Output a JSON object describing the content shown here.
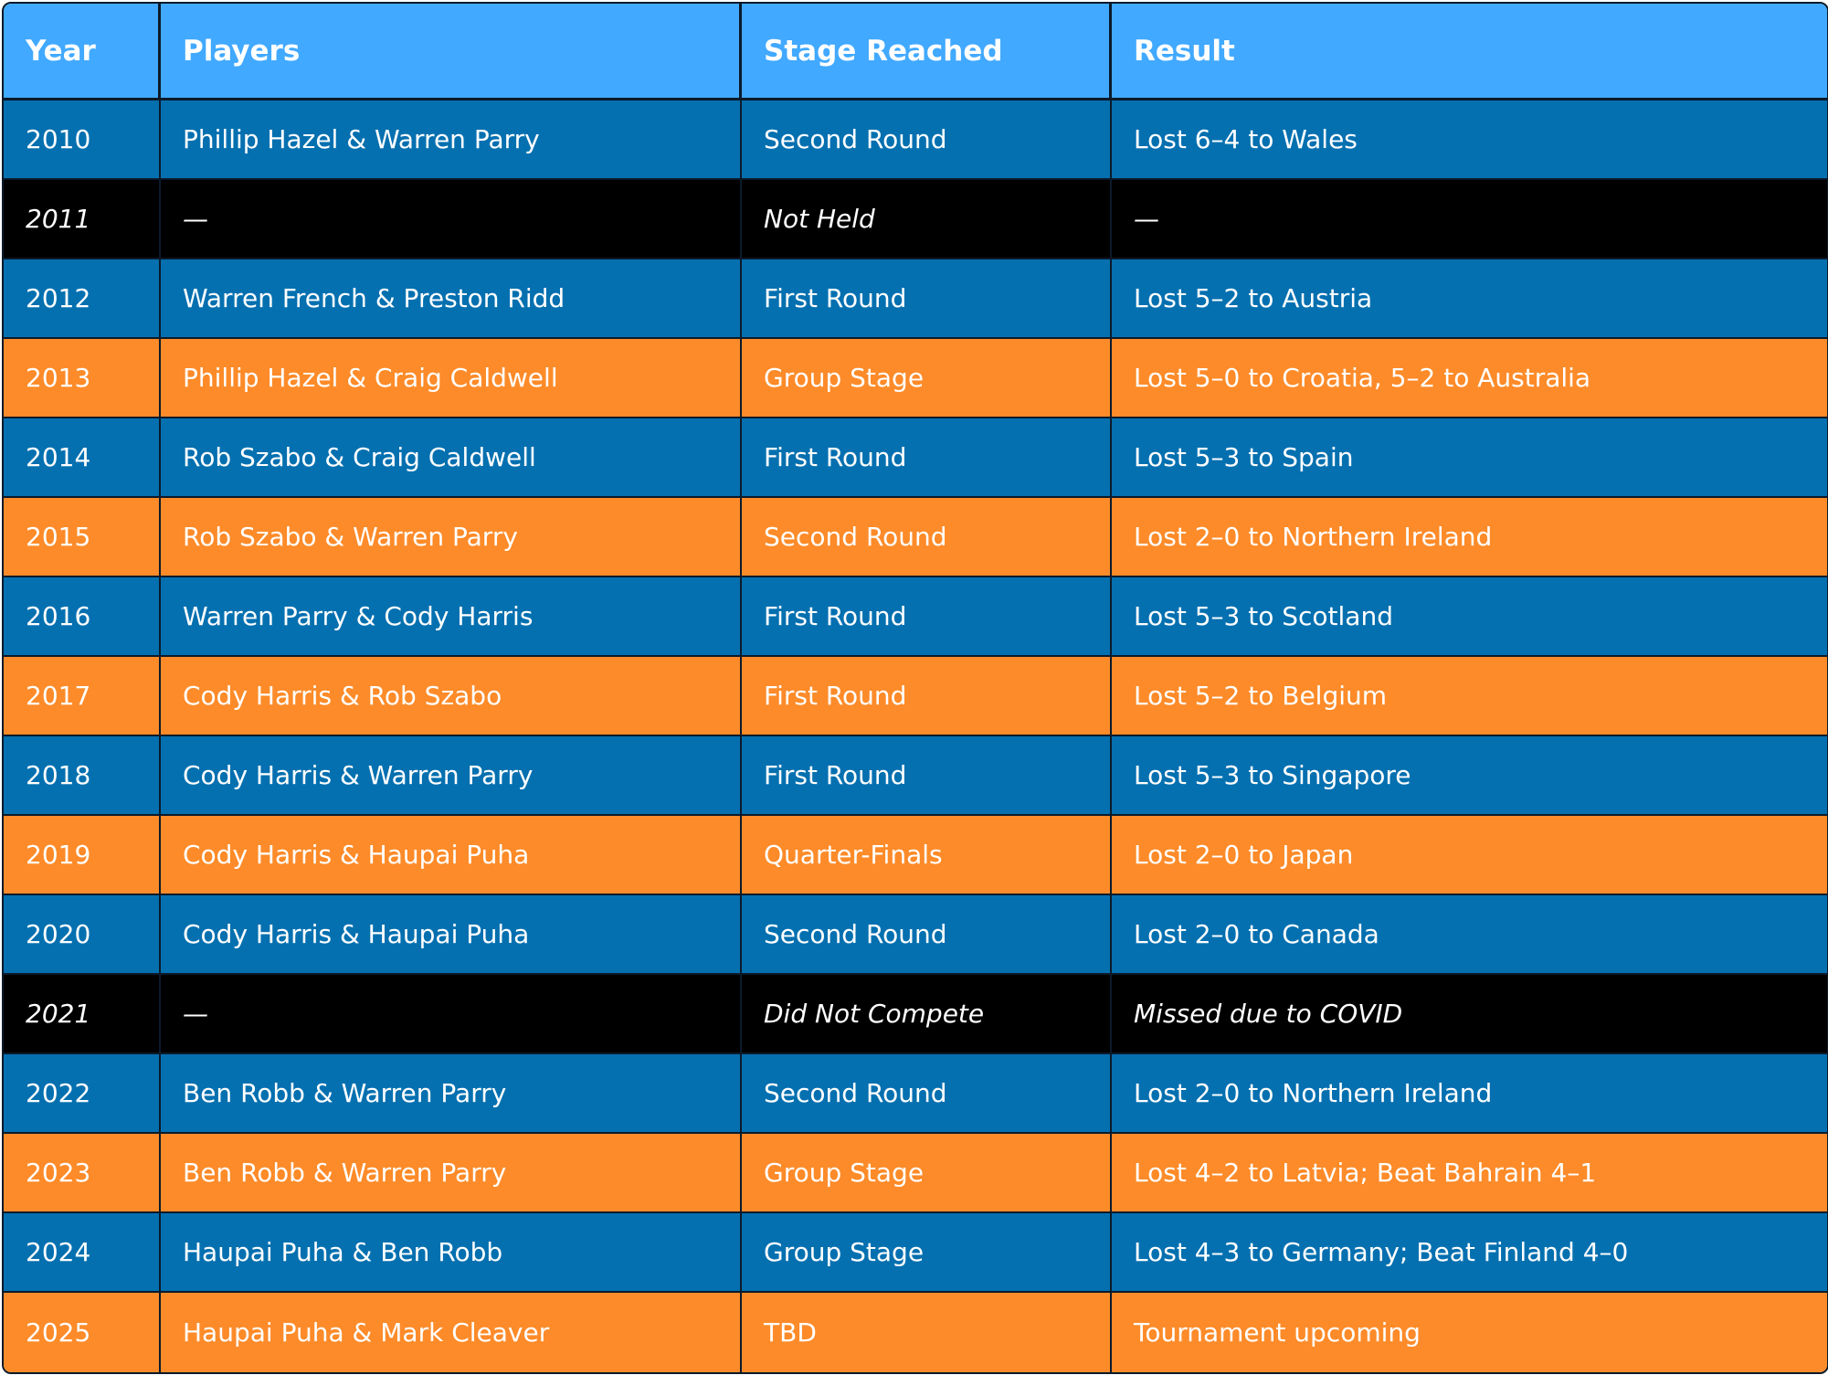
{
  "table": {
    "headers": [
      "Year",
      "Players",
      "Stage Reached",
      "Result"
    ],
    "rows": [
      {
        "style": "blue",
        "year": "2010",
        "players": "Phillip Hazel & Warren Parry",
        "stage": "Second Round",
        "result": "Lost 6–4 to Wales"
      },
      {
        "style": "black",
        "year": "2011",
        "players": "—",
        "stage": "Not Held",
        "result": "—"
      },
      {
        "style": "blue",
        "year": "2012",
        "players": "Warren French & Preston Ridd",
        "stage": "First Round",
        "result": "Lost 5–2 to Austria"
      },
      {
        "style": "orange",
        "year": "2013",
        "players": "Phillip Hazel & Craig Caldwell",
        "stage": "Group Stage",
        "result": "Lost 5–0 to Croatia, 5–2 to Australia"
      },
      {
        "style": "blue",
        "year": "2014",
        "players": "Rob Szabo & Craig Caldwell",
        "stage": "First Round",
        "result": "Lost 5–3 to Spain"
      },
      {
        "style": "orange",
        "year": "2015",
        "players": "Rob Szabo & Warren Parry",
        "stage": "Second Round",
        "result": "Lost 2–0 to Northern Ireland"
      },
      {
        "style": "blue",
        "year": "2016",
        "players": "Warren Parry & Cody Harris",
        "stage": "First Round",
        "result": "Lost 5–3 to Scotland"
      },
      {
        "style": "orange",
        "year": "2017",
        "players": "Cody Harris & Rob Szabo",
        "stage": "First Round",
        "result": "Lost 5–2 to Belgium"
      },
      {
        "style": "blue",
        "year": "2018",
        "players": "Cody Harris & Warren Parry",
        "stage": "First Round",
        "result": "Lost 5–3 to Singapore"
      },
      {
        "style": "orange",
        "year": "2019",
        "players": "Cody Harris & Haupai Puha",
        "stage": "Quarter-Finals",
        "result": "Lost 2–0 to Japan"
      },
      {
        "style": "blue",
        "year": "2020",
        "players": "Cody Harris & Haupai Puha",
        "stage": "Second Round",
        "result": "Lost 2–0 to Canada"
      },
      {
        "style": "black",
        "year": "2021",
        "players": "—",
        "stage": "Did Not Compete",
        "result": "Missed due to COVID"
      },
      {
        "style": "blue",
        "year": "2022",
        "players": "Ben Robb & Warren Parry",
        "stage": "Second Round",
        "result": "Lost 2–0 to Northern Ireland"
      },
      {
        "style": "orange",
        "year": "2023",
        "players": "Ben Robb & Warren Parry",
        "stage": "Group Stage",
        "result": "Lost 4–2 to Latvia; Beat Bahrain 4–1"
      },
      {
        "style": "blue",
        "year": "2024",
        "players": "Haupai Puha & Ben Robb",
        "stage": "Group Stage",
        "result": "Lost 4–3 to Germany; Beat Finland 4–0"
      },
      {
        "style": "orange",
        "year": "2025",
        "players": "Haupai Puha & Mark Cleaver",
        "stage": "TBD",
        "result": "Tournament upcoming"
      }
    ]
  },
  "colors": {
    "header": "#41a9ff",
    "row_blue": "#0570b0",
    "row_orange": "#fd8b29",
    "row_black": "#000000",
    "border": "#0b1a2a",
    "text": "#ffffff"
  }
}
